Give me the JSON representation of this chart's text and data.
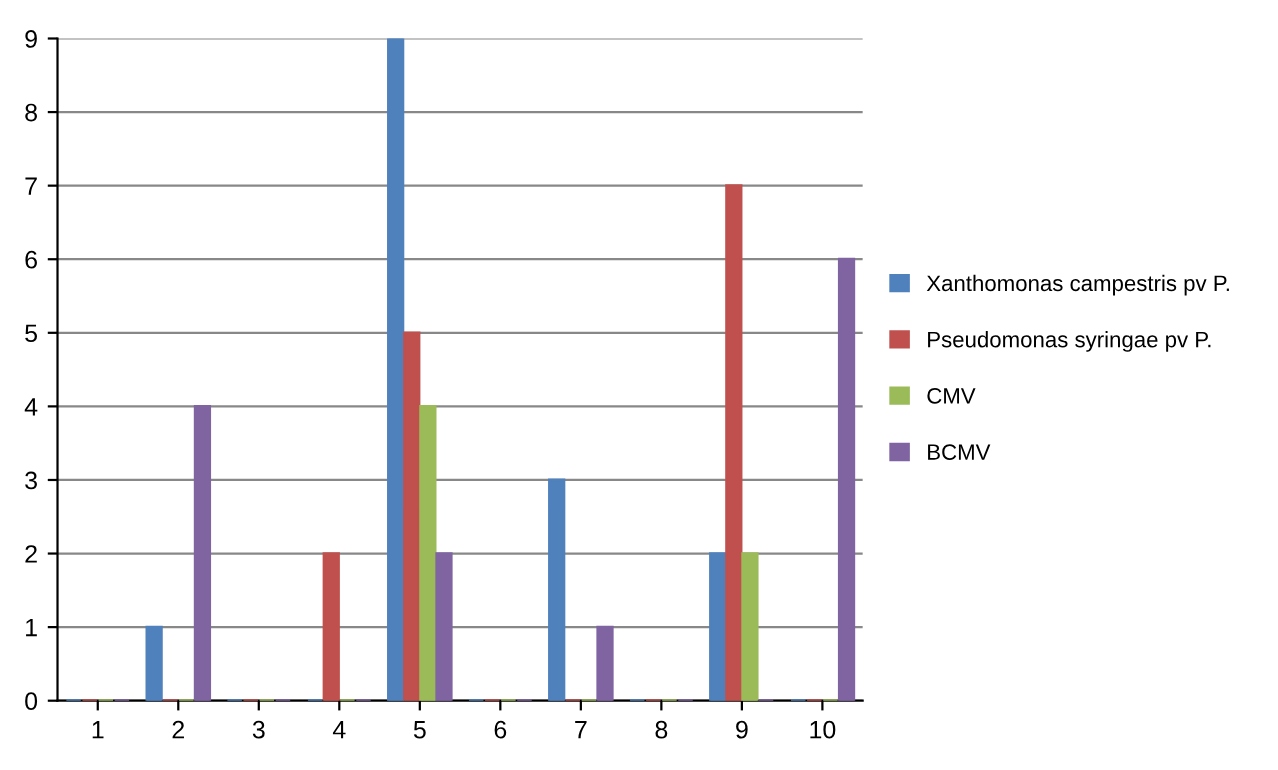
{
  "chart_data": {
    "type": "bar",
    "categories": [
      "1",
      "2",
      "3",
      "4",
      "5",
      "6",
      "7",
      "8",
      "9",
      "10"
    ],
    "series": [
      {
        "name": "Xanthomonas campestris pv P.",
        "color": "#4f81bd",
        "values": [
          0,
          1,
          0,
          0,
          9,
          0,
          3,
          0,
          2,
          0
        ]
      },
      {
        "name": "Pseudomonas syringae pv P.",
        "color": "#c0504d",
        "values": [
          0,
          0,
          0,
          2,
          5,
          0,
          0,
          0,
          7,
          0
        ]
      },
      {
        "name": "CMV",
        "color": "#9bbb59",
        "values": [
          0,
          0,
          0,
          0,
          4,
          0,
          0,
          0,
          2,
          0
        ]
      },
      {
        "name": "BCMV",
        "color": "#8064a2",
        "values": [
          0,
          4,
          0,
          0,
          2,
          0,
          1,
          0,
          0,
          6
        ]
      }
    ],
    "ylim": [
      0,
      9
    ],
    "yticks": [
      0,
      1,
      2,
      3,
      4,
      5,
      6,
      7,
      8,
      9
    ],
    "grid": "y",
    "legend": "right"
  }
}
